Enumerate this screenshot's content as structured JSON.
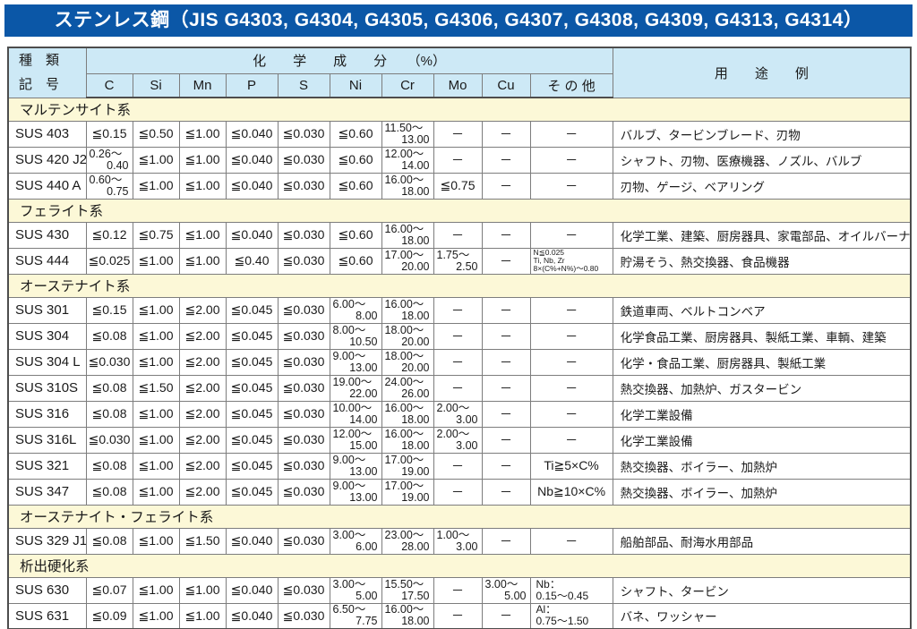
{
  "title": "ステンレス鋼（JIS G4303, G4304, G4305, G4306, G4307, G4308, G4309, G4313, G4314）",
  "colors": {
    "title_bg": "#0b57a7",
    "header_bg": "#cde9f6",
    "section_bg": "#fcf8d7",
    "grade_bg": "#cde9f6",
    "border": "#7d7d7d"
  },
  "table": {
    "header": {
      "kind_line1": "種　類",
      "kind_line2": "記　号",
      "chem_group": "化　　学　　成　　分　　（%）",
      "columns": [
        "C",
        "Si",
        "Mn",
        "P",
        "S",
        "Ni",
        "Cr",
        "Mo",
        "Cu",
        "そ の 他"
      ],
      "usage": "用　　途　　例"
    },
    "sections": [
      {
        "name": "マルテンサイト系",
        "rows": [
          {
            "grade": "SUS 403",
            "chem": [
              "≦0.15",
              "≦0.50",
              "≦1.00",
              "≦0.040",
              "≦0.030",
              "≦0.60",
              {
                "r": [
                  "11.50～",
                  "13.00"
                ]
              },
              "－",
              "－",
              "－"
            ],
            "usage": "バルブ、タービンブレード、刃物"
          },
          {
            "grade": "SUS 420 J2",
            "chem": [
              {
                "r": [
                  "0.26～",
                  "0.40"
                ]
              },
              "≦1.00",
              "≦1.00",
              "≦0.040",
              "≦0.030",
              "≦0.60",
              {
                "r": [
                  "12.00～",
                  "14.00"
                ]
              },
              "－",
              "－",
              "－"
            ],
            "usage": "シャフト、刃物、医療機器、ノズル、バルブ"
          },
          {
            "grade": "SUS 440 A",
            "chem": [
              {
                "r": [
                  "0.60～",
                  "0.75"
                ]
              },
              "≦1.00",
              "≦1.00",
              "≦0.040",
              "≦0.030",
              "≦0.60",
              {
                "r": [
                  "16.00～",
                  "18.00"
                ]
              },
              "≦0.75",
              "－",
              "－"
            ],
            "usage": "刃物、ゲージ、ベアリング"
          }
        ]
      },
      {
        "name": "フェライト系",
        "rows": [
          {
            "grade": "SUS 430",
            "chem": [
              "≦0.12",
              "≦0.75",
              "≦1.00",
              "≦0.040",
              "≦0.030",
              "≦0.60",
              {
                "r": [
                  "16.00～",
                  "18.00"
                ]
              },
              "－",
              "－",
              "－"
            ],
            "usage": "化学工業、建築、厨房器具、家電部品、オイルバーナー部品"
          },
          {
            "grade": "SUS 444",
            "chem": [
              "≦0.025",
              "≦1.00",
              "≦1.00",
              "≦0.40",
              "≦0.030",
              "≦0.60",
              {
                "r": [
                  "17.00～",
                  "20.00"
                ]
              },
              {
                "r": [
                  "1.75～",
                  "2.50"
                ]
              },
              "－",
              {
                "sm": [
                  "N≦0.025",
                  "Ti, Nb, Zr",
                  "8×(C%+N%)～0.80"
                ]
              }
            ],
            "usage": "貯湯そう、熱交換器、食品機器"
          }
        ]
      },
      {
        "name": "オーステナイト系",
        "rows": [
          {
            "grade": "SUS 301",
            "chem": [
              "≦0.15",
              "≦1.00",
              "≦2.00",
              "≦0.045",
              "≦0.030",
              {
                "r": [
                  "6.00～",
                  "8.00"
                ]
              },
              {
                "r": [
                  "16.00～",
                  "18.00"
                ]
              },
              "－",
              "－",
              "－"
            ],
            "usage": "鉄道車両、ベルトコンベア"
          },
          {
            "grade": "SUS 304",
            "chem": [
              "≦0.08",
              "≦1.00",
              "≦2.00",
              "≦0.045",
              "≦0.030",
              {
                "r": [
                  "8.00～",
                  "10.50"
                ]
              },
              {
                "r": [
                  "18.00～",
                  "20.00"
                ]
              },
              "－",
              "－",
              "－"
            ],
            "usage": "化学食品工業、厨房器具、製紙工業、車輌、建築"
          },
          {
            "grade": "SUS 304 L",
            "chem": [
              "≦0.030",
              "≦1.00",
              "≦2.00",
              "≦0.045",
              "≦0.030",
              {
                "r": [
                  "9.00～",
                  "13.00"
                ]
              },
              {
                "r": [
                  "18.00～",
                  "20.00"
                ]
              },
              "－",
              "－",
              "－"
            ],
            "usage": "化学・食品工業、厨房器具、製紙工業"
          },
          {
            "grade": "SUS 310S",
            "chem": [
              "≦0.08",
              "≦1.50",
              "≦2.00",
              "≦0.045",
              "≦0.030",
              {
                "r": [
                  "19.00～",
                  "22.00"
                ]
              },
              {
                "r": [
                  "24.00～",
                  "26.00"
                ]
              },
              "－",
              "－",
              "－"
            ],
            "usage": "熱交換器、加熱炉、ガスタービン"
          },
          {
            "grade": "SUS 316",
            "chem": [
              "≦0.08",
              "≦1.00",
              "≦2.00",
              "≦0.045",
              "≦0.030",
              {
                "r": [
                  "10.00～",
                  "14.00"
                ]
              },
              {
                "r": [
                  "16.00～",
                  "18.00"
                ]
              },
              {
                "r": [
                  "2.00～",
                  "3.00"
                ]
              },
              "－",
              "－"
            ],
            "usage": "化学工業設備"
          },
          {
            "grade": "SUS 316L",
            "chem": [
              "≦0.030",
              "≦1.00",
              "≦2.00",
              "≦0.045",
              "≦0.030",
              {
                "r": [
                  "12.00～",
                  "15.00"
                ]
              },
              {
                "r": [
                  "16.00～",
                  "18.00"
                ]
              },
              {
                "r": [
                  "2.00～",
                  "3.00"
                ]
              },
              "－",
              "－"
            ],
            "usage": "化学工業設備"
          },
          {
            "grade": "SUS 321",
            "chem": [
              "≦0.08",
              "≦1.00",
              "≦2.00",
              "≦0.045",
              "≦0.030",
              {
                "r": [
                  "9.00～",
                  "13.00"
                ]
              },
              {
                "r": [
                  "17.00～",
                  "19.00"
                ]
              },
              "－",
              "－",
              "Ti≧5×C%"
            ],
            "usage": "熱交換器、ボイラー、加熱炉"
          },
          {
            "grade": "SUS 347",
            "chem": [
              "≦0.08",
              "≦1.00",
              "≦2.00",
              "≦0.045",
              "≦0.030",
              {
                "r": [
                  "9.00～",
                  "13.00"
                ]
              },
              {
                "r": [
                  "17.00～",
                  "19.00"
                ]
              },
              "－",
              "－",
              "Nb≧10×C%"
            ],
            "usage": "熱交換器、ボイラー、加熱炉"
          }
        ]
      },
      {
        "name": "オーステナイト・フェライト系",
        "rows": [
          {
            "grade": "SUS 329 J1",
            "chem": [
              "≦0.08",
              "≦1.00",
              "≦1.50",
              "≦0.040",
              "≦0.030",
              {
                "r": [
                  "3.00～",
                  "6.00"
                ]
              },
              {
                "r": [
                  "23.00～",
                  "28.00"
                ]
              },
              {
                "r": [
                  "1.00～",
                  "3.00"
                ]
              },
              "－",
              "－"
            ],
            "usage": "船舶部品、耐海水用部品"
          }
        ]
      },
      {
        "name": "析出硬化系",
        "rows": [
          {
            "grade": "SUS 630",
            "chem": [
              "≦0.07",
              "≦1.00",
              "≦1.00",
              "≦0.040",
              "≦0.030",
              {
                "r": [
                  "3.00～",
                  "5.00"
                ]
              },
              {
                "r": [
                  "15.50～",
                  "17.50"
                ]
              },
              "－",
              {
                "r": [
                  "3.00～",
                  "5.00"
                ]
              },
              {
                "l2": [
                  "Nb：",
                  "0.15～0.45"
                ]
              }
            ],
            "usage": "シャフト、タービン"
          },
          {
            "grade": "SUS 631",
            "chem": [
              "≦0.09",
              "≦1.00",
              "≦1.00",
              "≦0.040",
              "≦0.030",
              {
                "r": [
                  "6.50～",
                  "7.75"
                ]
              },
              {
                "r": [
                  "16.00～",
                  "18.00"
                ]
              },
              "－",
              "－",
              {
                "l2": [
                  "Al：",
                  "0.75～1.50"
                ]
              }
            ],
            "usage": "バネ、ワッシャー"
          }
        ]
      }
    ]
  }
}
